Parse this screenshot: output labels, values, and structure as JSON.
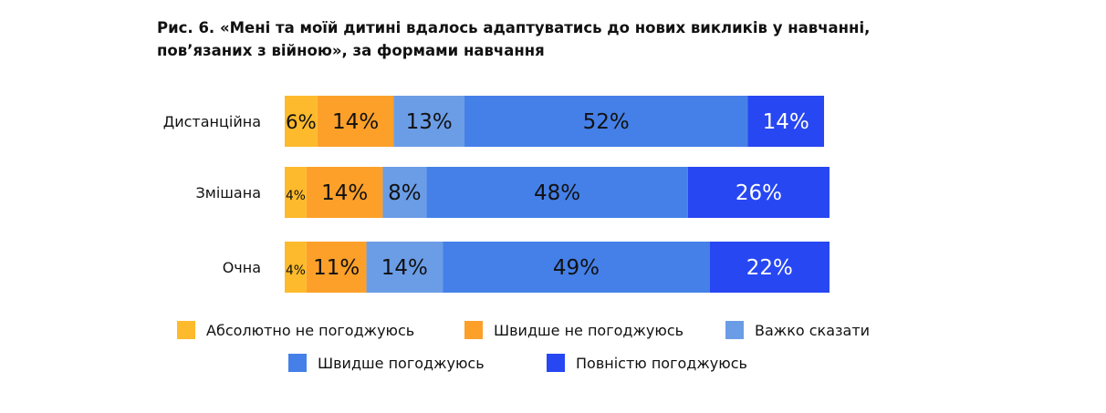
{
  "title_line1": "Рис. 6. «Мені та моїй дитині вдалось адаптуватись до нових викликів у навчанні,",
  "title_line2": "пов’язаних з війною», за формами навчання",
  "chart_data": {
    "type": "bar",
    "orientation": "horizontal",
    "stacked": true,
    "normalized_to_100": true,
    "categories": [
      "Дистанційна",
      "Змішана",
      "Очна"
    ],
    "series": [
      {
        "name": "Абсолютно не погоджуюсь",
        "color": "#FDBA2C",
        "values": [
          6,
          4,
          4
        ],
        "labels": [
          "6%",
          "4%",
          "4%"
        ],
        "label_color": "#111111"
      },
      {
        "name": "Швидше не погоджуюсь",
        "color": "#FCA02A",
        "values": [
          14,
          14,
          11
        ],
        "labels": [
          "14%",
          "14%",
          "11%"
        ],
        "label_color": "#111111"
      },
      {
        "name": "Важко сказати",
        "color": "#6B9DE6",
        "values": [
          13,
          8,
          14
        ],
        "labels": [
          "13%",
          "8%",
          "14%"
        ],
        "label_color": "#111111"
      },
      {
        "name": "Швидше погоджуюсь",
        "color": "#4580E8",
        "values": [
          52,
          48,
          49
        ],
        "labels": [
          "52%",
          "48%",
          "49%"
        ],
        "label_color": "#111111"
      },
      {
        "name": "Повністю погоджуюсь",
        "color": "#2747F2",
        "values": [
          14,
          26,
          22
        ],
        "labels": [
          "14%",
          "26%",
          "22%"
        ],
        "label_color": "#ffffff"
      }
    ],
    "xlim": [
      0,
      100
    ],
    "legend_position": "bottom"
  }
}
